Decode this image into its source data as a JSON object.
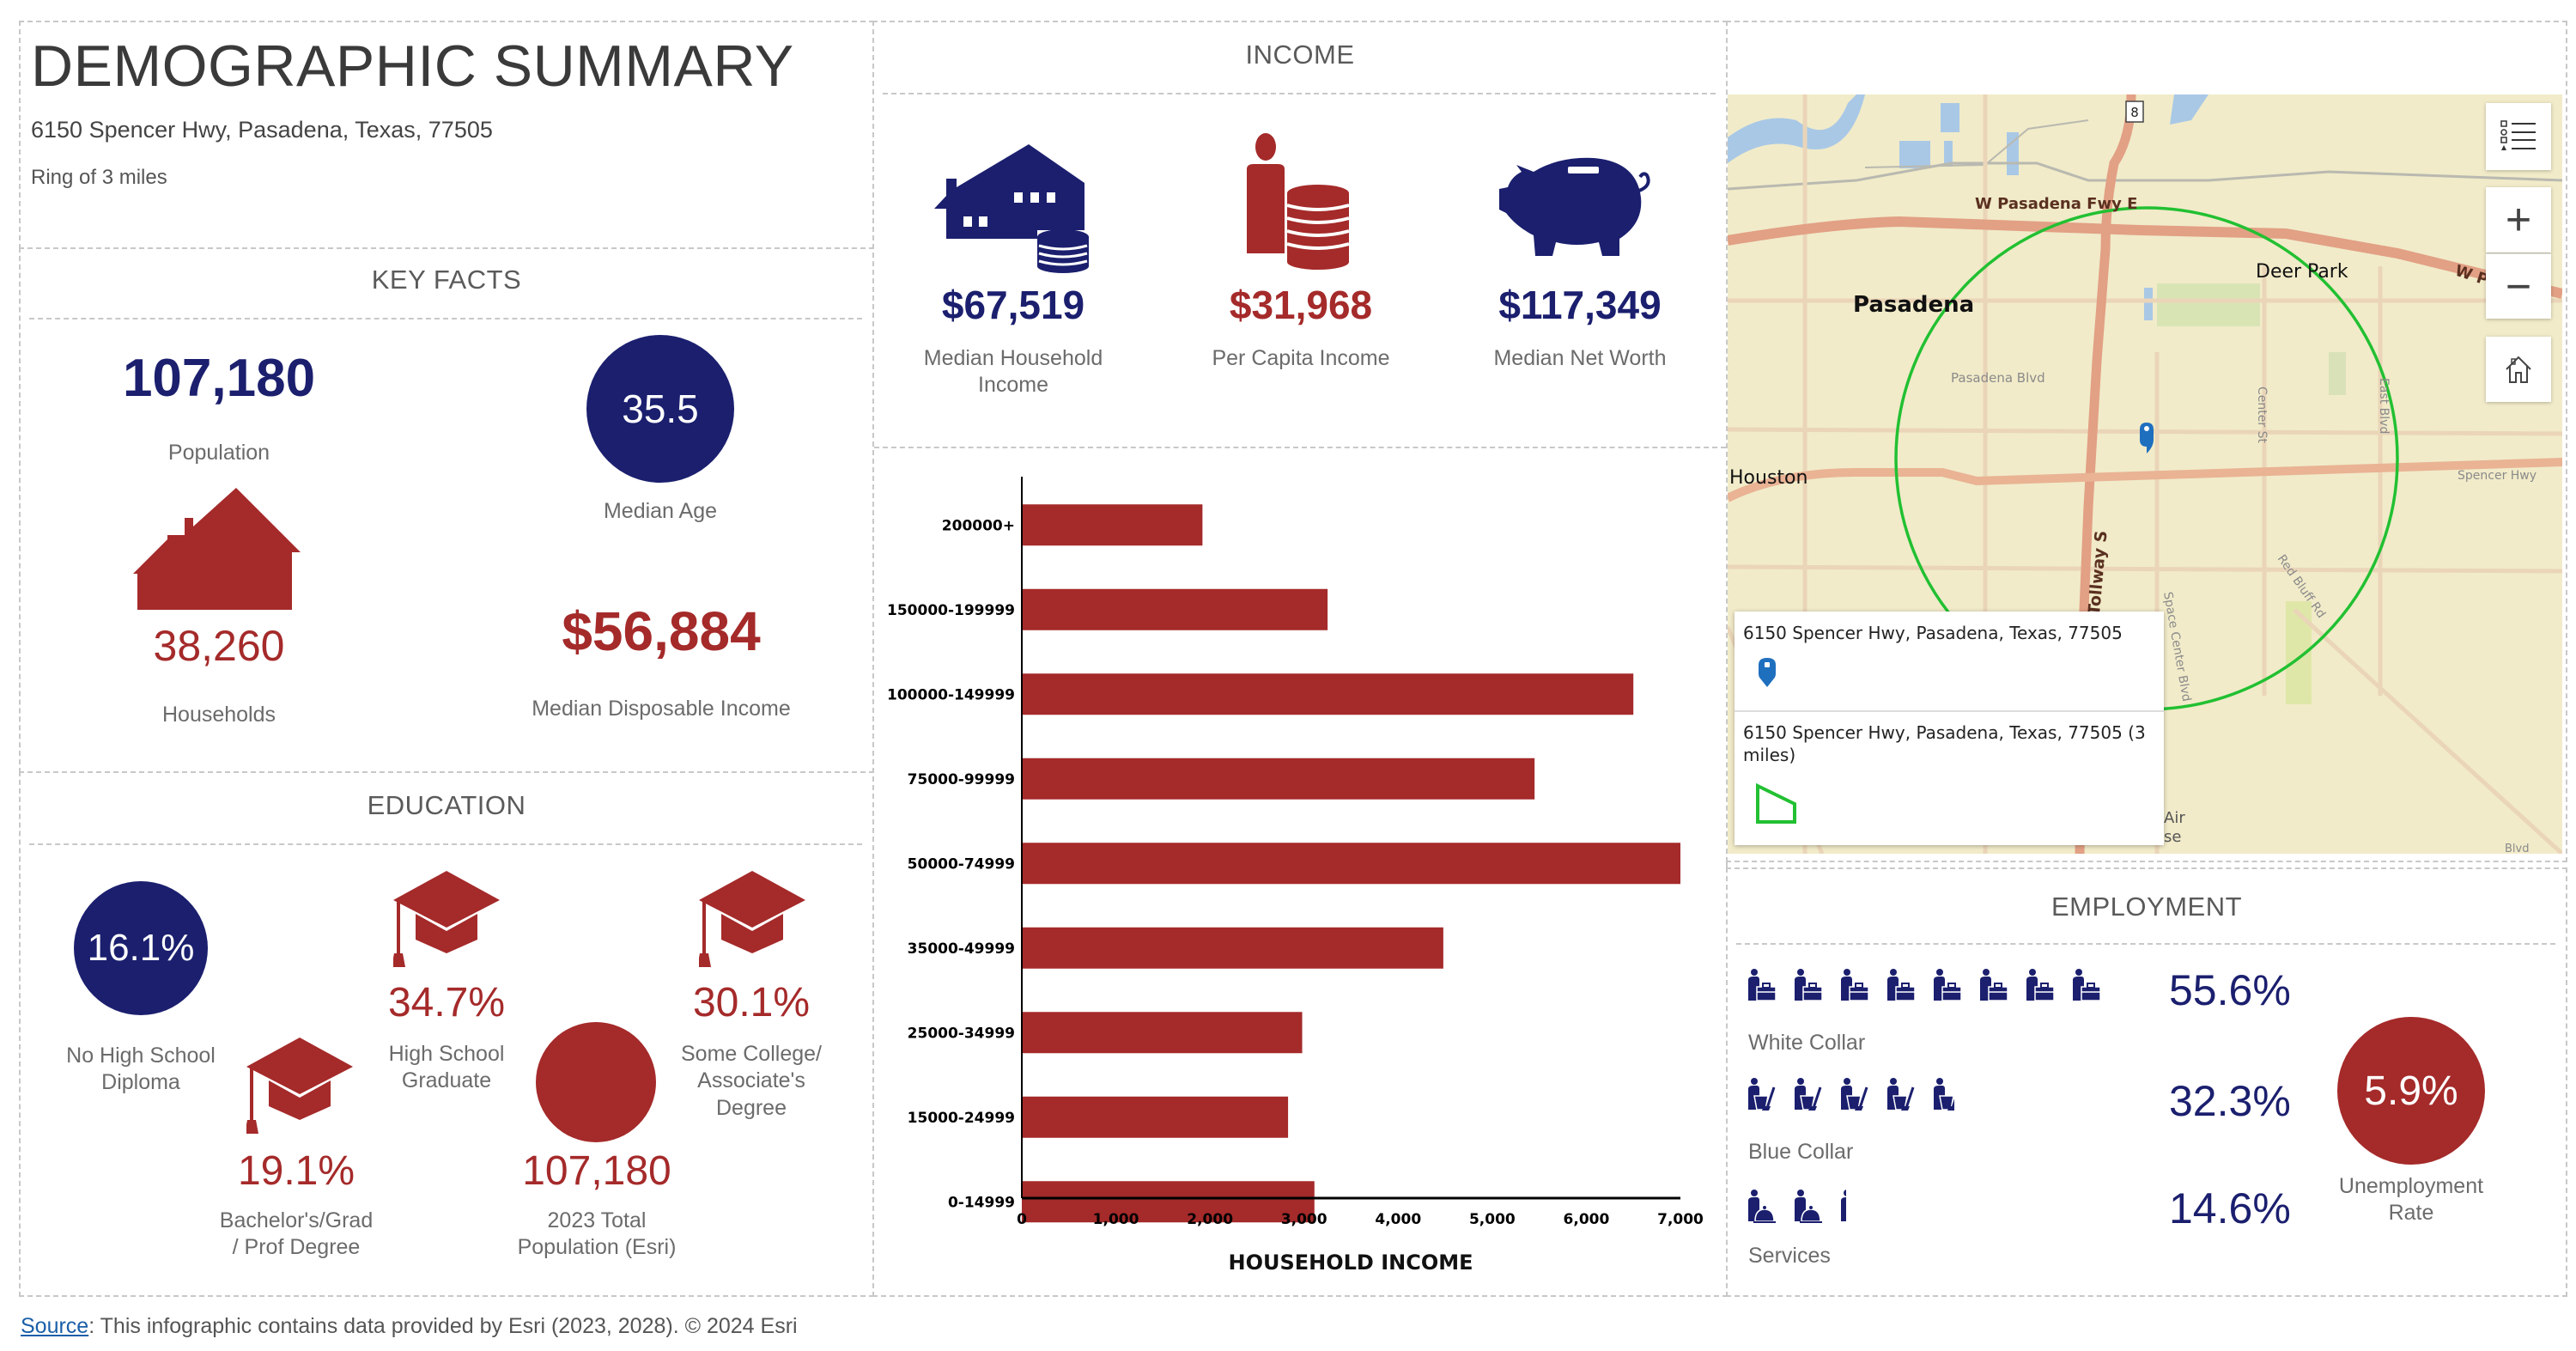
{
  "header": {
    "title": "DEMOGRAPHIC SUMMARY",
    "address": "6150 Spencer Hwy, Pasadena, Texas, 77505",
    "ring": "Ring of 3 miles"
  },
  "key_facts": {
    "title": "KEY FACTS",
    "population": {
      "value": "107,180",
      "label": "Population"
    },
    "median_age": {
      "value": "35.5",
      "label": "Median Age"
    },
    "households": {
      "value": "38,260",
      "label": "Households"
    },
    "median_disposable_income": {
      "value": "$56,884",
      "label": "Median Disposable Income"
    }
  },
  "education": {
    "title": "EDUCATION",
    "no_high_school": {
      "value": "16.1%",
      "label_1": "No High School",
      "label_2": "Diploma"
    },
    "high_school": {
      "value": "34.7%",
      "label_1": "High School",
      "label_2": "Graduate"
    },
    "some_college": {
      "value": "30.1%",
      "label_1": "Some College/",
      "label_2": "Associate's",
      "label_3": "Degree"
    },
    "bachelors": {
      "value": "19.1%",
      "label_1": "Bachelor's/Grad",
      "label_2": "/ Prof Degree"
    },
    "total_population": {
      "value": "107,180",
      "label_1": "2023 Total",
      "label_2": "Population (Esri)"
    }
  },
  "income": {
    "title": "INCOME",
    "median_household_income": {
      "value": "$67,519",
      "label_1": "Median Household",
      "label_2": "Income"
    },
    "per_capita_income": {
      "value": "$31,968",
      "label": "Per Capita Income"
    },
    "median_net_worth": {
      "value": "$117,349",
      "label": "Median Net Worth"
    }
  },
  "chart_data": {
    "type": "bar",
    "orientation": "horizontal",
    "title": "",
    "xlabel": "HOUSEHOLD INCOME",
    "ylabel": "",
    "categories": [
      "200000+",
      "150000-199999",
      "100000-149999",
      "75000-99999",
      "50000-74999",
      "35000-49999",
      "25000-34999",
      "15000-24999",
      "0-14999"
    ],
    "values": [
      1920,
      3250,
      6500,
      5450,
      7000,
      4480,
      2980,
      2830,
      3110
    ],
    "xlim": [
      0,
      7000
    ],
    "xticks": [
      "0",
      "1,000",
      "2,000",
      "3,000",
      "4,000",
      "5,000",
      "6,000",
      "7,000"
    ],
    "grid": false,
    "bar_color": "#a52a2a"
  },
  "map": {
    "labels": {
      "pasadena": "Pasadena",
      "deer_park": "Deer Park",
      "houston": "Houston",
      "w_pasadena_fwy": "W Pasadena Fwy E",
      "w_p": "W P",
      "pasadena_blvd": "Pasadena Blvd",
      "center_st": "Center St",
      "east_blvd": "East Blvd",
      "spencer_hwy": "Spencer Hwy",
      "tollway": "on Tollway S",
      "space_center": "Space Center Blvd",
      "red_bluff": "Red Bluff Rd",
      "air": "Air",
      "se": "se",
      "blvd": "Blvd",
      "route_8": "8"
    },
    "controls": {
      "legend_icon": "legend-list-icon",
      "zoom_in": "+",
      "zoom_out": "−",
      "home_icon": "home-icon"
    },
    "popup": {
      "item_1": "6150 Spencer Hwy, Pasadena, Texas, 77505",
      "item_2": "6150 Spencer Hwy, Pasadena, Texas, 77505 (3 miles)"
    },
    "ring_color": "#22c032",
    "pin_color": "#1f6fbf"
  },
  "employment": {
    "title": "EMPLOYMENT",
    "white_collar": {
      "value": "55.6%",
      "label": "White Collar",
      "icons": 8
    },
    "blue_collar": {
      "value": "32.3%",
      "label": "Blue Collar",
      "icons": 5
    },
    "services": {
      "value": "14.6%",
      "label": "Services",
      "icons": 3
    },
    "unemployment": {
      "value": "5.9%",
      "label_1": "Unemployment",
      "label_2": "Rate"
    }
  },
  "footer": {
    "source_link": "Source",
    "text": ": This infographic contains data provided by Esri (2023, 2028). © 2024 Esri"
  },
  "colors": {
    "navy": "#1b1f6e",
    "red": "#a52a2a",
    "label_gray": "#6b6b6b"
  }
}
